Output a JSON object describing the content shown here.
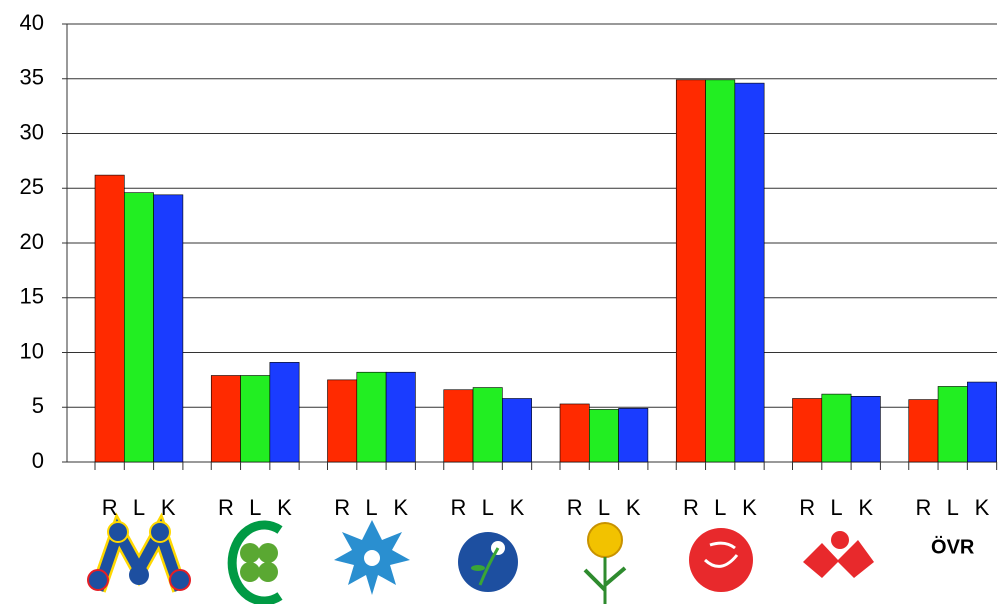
{
  "chart_data": {
    "type": "bar",
    "categories": [
      null,
      null,
      null,
      null,
      null,
      null,
      null,
      "ÖVR"
    ],
    "series": [
      {
        "name": "R",
        "color": "#ff2a00",
        "values": [
          26.2,
          7.9,
          7.5,
          6.6,
          5.3,
          34.9,
          5.8,
          5.7
        ]
      },
      {
        "name": "L",
        "color": "#22ee22",
        "values": [
          24.6,
          7.9,
          8.2,
          6.8,
          4.8,
          34.9,
          6.2,
          6.9
        ]
      },
      {
        "name": "K",
        "color": "#1a3cff",
        "values": [
          24.4,
          9.1,
          8.2,
          5.8,
          4.9,
          34.6,
          6.0,
          7.3
        ]
      }
    ],
    "ylim": [
      0,
      40
    ],
    "yticks": [
      0,
      5,
      10,
      15,
      20,
      25,
      30,
      35,
      40
    ],
    "grid": true
  }
}
